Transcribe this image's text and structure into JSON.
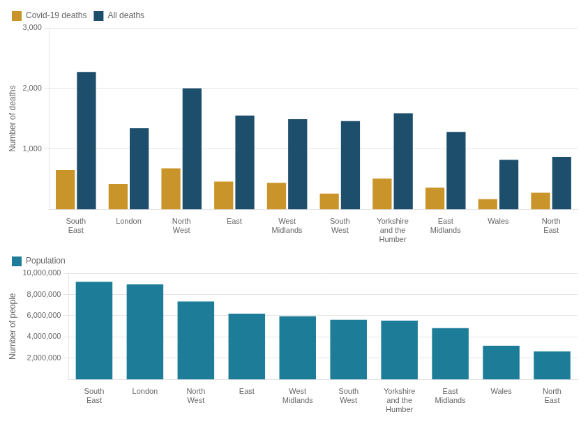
{
  "chart_data": [
    {
      "type": "bar",
      "ylabel": "Number of deaths",
      "categories": [
        "South\nEast",
        "London",
        "North\nWest",
        "East",
        "West\nMidlands",
        "South\nWest",
        "Yorkshire\nand the\nHumber",
        "East\nMidlands",
        "Wales",
        "North\nEast"
      ],
      "series": [
        {
          "name": "Covid-19 deaths",
          "color": "#c9952a",
          "values": [
            650,
            420,
            680,
            460,
            440,
            260,
            510,
            360,
            170,
            275
          ]
        },
        {
          "name": "All deaths",
          "color": "#1d4e6b",
          "values": [
            2270,
            1340,
            2000,
            1550,
            1490,
            1460,
            1590,
            1280,
            820,
            870
          ]
        }
      ],
      "ylim": [
        0,
        3000
      ],
      "yticks": [
        {
          "value": 1000,
          "label": "1,000"
        },
        {
          "value": 2000,
          "label": "2,000"
        },
        {
          "value": 3000,
          "label": "3,000"
        }
      ],
      "grid": true,
      "legend": "top"
    },
    {
      "type": "bar",
      "ylabel": "Number of people",
      "categories": [
        "South\nEast",
        "London",
        "North\nWest",
        "East",
        "West\nMidlands",
        "South\nWest",
        "Yorkshire\nand the\nHumber",
        "East\nMidlands",
        "Wales",
        "North\nEast"
      ],
      "series": [
        {
          "name": "Population",
          "color": "#1d7d99",
          "values": [
            9200000,
            8950000,
            7350000,
            6200000,
            5950000,
            5620000,
            5540000,
            4830000,
            3170000,
            2640000
          ]
        }
      ],
      "ylim": [
        0,
        10000000
      ],
      "yticks": [
        {
          "value": 2000000,
          "label": "2,000,000"
        },
        {
          "value": 4000000,
          "label": "4,000,000"
        },
        {
          "value": 6000000,
          "label": "6,000,000"
        },
        {
          "value": 8000000,
          "label": "8,000,000"
        },
        {
          "value": 10000000,
          "label": "10,000,000"
        }
      ],
      "grid": true,
      "legend": "top"
    }
  ]
}
